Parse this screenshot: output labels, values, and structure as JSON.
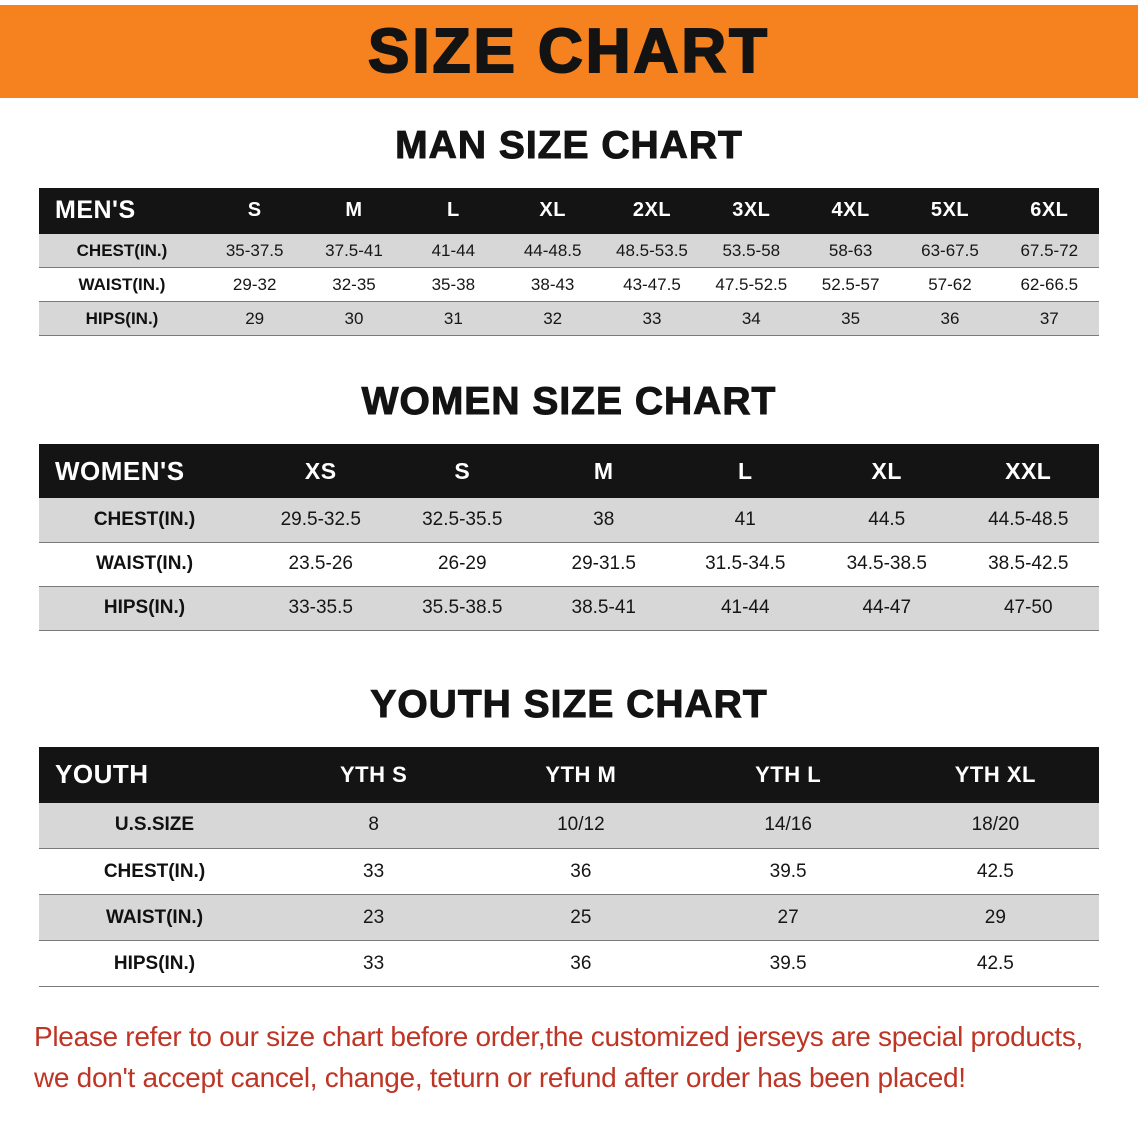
{
  "banner": {
    "title": "SIZE CHART"
  },
  "men": {
    "heading": "MAN SIZE CHART",
    "table": {
      "header": [
        "MEN'S",
        "S",
        "M",
        "L",
        "XL",
        "2XL",
        "3XL",
        "4XL",
        "5XL",
        "6XL"
      ],
      "rows": [
        [
          "CHEST(IN.)",
          "35-37.5",
          "37.5-41",
          "41-44",
          "44-48.5",
          "48.5-53.5",
          "53.5-58",
          "58-63",
          "63-67.5",
          "67.5-72"
        ],
        [
          "WAIST(IN.)",
          "29-32",
          "32-35",
          "35-38",
          "38-43",
          "43-47.5",
          "47.5-52.5",
          "52.5-57",
          "57-62",
          "62-66.5"
        ],
        [
          "HIPS(IN.)",
          "29",
          "30",
          "31",
          "32",
          "33",
          "34",
          "35",
          "36",
          "37"
        ]
      ]
    }
  },
  "women": {
    "heading": "WOMEN SIZE CHART",
    "table": {
      "header": [
        "WOMEN'S",
        "XS",
        "S",
        "M",
        "L",
        "XL",
        "XXL"
      ],
      "rows": [
        [
          "CHEST(IN.)",
          "29.5-32.5",
          "32.5-35.5",
          "38",
          "41",
          "44.5",
          "44.5-48.5"
        ],
        [
          "WAIST(IN.)",
          "23.5-26",
          "26-29",
          "29-31.5",
          "31.5-34.5",
          "34.5-38.5",
          "38.5-42.5"
        ],
        [
          "HIPS(IN.)",
          "33-35.5",
          "35.5-38.5",
          "38.5-41",
          "41-44",
          "44-47",
          "47-50"
        ]
      ]
    }
  },
  "youth": {
    "heading": "YOUTH SIZE CHART",
    "table": {
      "header": [
        "YOUTH",
        "YTH S",
        "YTH M",
        "YTH L",
        "YTH XL"
      ],
      "rows": [
        [
          "U.S.SIZE",
          "8",
          "10/12",
          "14/16",
          "18/20"
        ],
        [
          "CHEST(IN.)",
          "33",
          "36",
          "39.5",
          "42.5"
        ],
        [
          "WAIST(IN.)",
          "23",
          "25",
          "27",
          "29"
        ],
        [
          "HIPS(IN.)",
          "33",
          "36",
          "39.5",
          "42.5"
        ]
      ]
    }
  },
  "disclaimer": {
    "line1": "Please refer to our size chart before order,the customized jerseys are special products,",
    "line2": "we don't accept cancel, change, teturn or refund after order has been placed!"
  },
  "colors": {
    "banner-bg": "#F5821E",
    "header-bar": "#141414",
    "stripe": "#D7D7D7",
    "disclaimer-red": "#BE3525"
  }
}
